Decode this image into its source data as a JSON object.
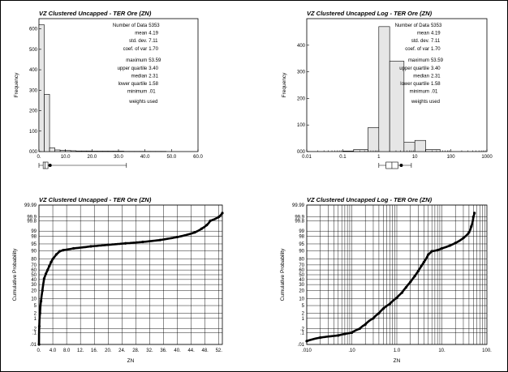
{
  "chart_data": [
    {
      "type": "bar",
      "title": "VZ Clustered Uncapped - TER Ore (ZN)",
      "ylabel": "Frequency",
      "xlim": [
        0,
        60
      ],
      "ylim": [
        0,
        650
      ],
      "xticks": [
        "0.",
        "10.0",
        "20.0",
        "30.0",
        "40.0",
        "50.0",
        "60.0"
      ],
      "yticks": [
        "000",
        "100",
        "200",
        "300",
        "400",
        "500",
        "600"
      ],
      "bin_width": 2,
      "values": [
        620,
        280,
        18,
        8,
        6,
        5,
        4,
        3,
        3,
        3,
        2,
        2,
        2,
        2,
        2,
        2,
        1,
        1,
        1,
        1,
        1,
        1,
        1,
        1
      ],
      "boxplot": {
        "p10": 0.0,
        "q1": 1.58,
        "median": 2.31,
        "q3": 3.4,
        "p90": 33.0,
        "mean": 4.19
      },
      "stats": {
        "labels": [
          "Number of Data",
          "mean",
          "std. dev.",
          "coef. of var",
          "maximum",
          "upper quartile",
          "median",
          "lower quartile",
          "minimum"
        ],
        "values": [
          "5353",
          "4.19",
          "7.11",
          "1.70",
          "53.59",
          "3.40",
          "2.31",
          "1.58",
          ".01"
        ],
        "note": "weights used"
      }
    },
    {
      "type": "bar",
      "title": "VZ Clustered Uncapped Log - TER Ore (ZN)",
      "ylabel": "Frequency",
      "xscale": "log",
      "xlim": [
        0.01,
        1000
      ],
      "ylim": [
        0,
        500
      ],
      "xticks": [
        "0.01",
        "0.1",
        "1",
        "10",
        "100",
        "1000"
      ],
      "yticks": [
        "000",
        "100",
        "200",
        "300",
        "400"
      ],
      "bins": [
        [
          0.1,
          0.2,
          2
        ],
        [
          0.2,
          0.5,
          8
        ],
        [
          0.5,
          1.0,
          90
        ],
        [
          1.0,
          2.0,
          470
        ],
        [
          2.0,
          5.0,
          340
        ],
        [
          5.0,
          10.0,
          35
        ],
        [
          10.0,
          20.0,
          42
        ],
        [
          20.0,
          50.0,
          8
        ]
      ],
      "boxplot": {
        "p10": 1.0,
        "q1": 1.58,
        "median": 2.31,
        "q3": 3.4,
        "p90": 8.0,
        "mean": 4.19
      },
      "stats": {
        "labels": [
          "Number of Data",
          "mean",
          "std. dev.",
          "coef. of var",
          "maximum",
          "upper quartile",
          "median",
          "lower quartile",
          "minimum"
        ],
        "values": [
          "5353",
          "4.19",
          "7.11",
          "1.70",
          "53.59",
          "3.40",
          "2.31",
          "1.58",
          ".01"
        ],
        "note": "weights used"
      }
    },
    {
      "type": "scatter",
      "title": "VZ Clustered Uncapped - TER Ore (ZN)",
      "xlabel": "ZN",
      "ylabel": "Cumulative Probability",
      "xlim": [
        0,
        53
      ],
      "xticks": [
        "0.",
        "4.0",
        "8.0",
        "12.",
        "16.",
        "20.",
        "24.",
        "28.",
        "32.",
        "36.",
        "40.",
        "44.",
        "48.",
        "52."
      ],
      "yticks": [
        "99.99",
        "99.9",
        "99.8",
        "99",
        "98",
        "95",
        "90",
        "80",
        "70",
        "60",
        "50",
        "40",
        "30",
        "20",
        "10",
        "5",
        "2",
        "1",
        ".2",
        ".1",
        ".01"
      ],
      "points": [
        [
          0.01,
          0.01
        ],
        [
          0.1,
          0.3
        ],
        [
          0.3,
          2
        ],
        [
          0.6,
          8
        ],
        [
          1.0,
          20
        ],
        [
          1.5,
          42
        ],
        [
          2.0,
          52
        ],
        [
          2.5,
          60
        ],
        [
          3.0,
          68
        ],
        [
          3.5,
          75
        ],
        [
          4.0,
          80
        ],
        [
          5.0,
          86
        ],
        [
          6.0,
          89.5
        ],
        [
          7.0,
          90.5
        ],
        [
          10.0,
          92
        ],
        [
          15.0,
          93.5
        ],
        [
          20.0,
          94.5
        ],
        [
          25.0,
          95.3
        ],
        [
          30.0,
          96.0
        ],
        [
          35.0,
          96.8
        ],
        [
          40.0,
          97.8
        ],
        [
          45.0,
          98.8
        ],
        [
          47.0,
          99.3
        ],
        [
          48.5,
          99.6
        ],
        [
          49.5,
          99.8
        ],
        [
          52.0,
          99.9
        ],
        [
          53.0,
          99.95
        ]
      ]
    },
    {
      "type": "scatter",
      "title": "VZ Clustered Uncapped Log - TER Ore (ZN)",
      "xlabel": "ZN",
      "ylabel": "Cumulative Probability",
      "xscale": "log",
      "xlim": [
        0.01,
        100
      ],
      "xticks": [
        ".010",
        ".10",
        "1.0",
        "10.",
        "100."
      ],
      "yticks": [
        "99.99",
        "99.9",
        "99.8",
        "99",
        "98",
        "95",
        "90",
        "80",
        "70",
        "60",
        "50",
        "40",
        "30",
        "20",
        "10",
        "5",
        "2",
        "1",
        ".2",
        ".1",
        ".01"
      ],
      "points": [
        [
          0.01,
          0.02
        ],
        [
          0.02,
          0.04
        ],
        [
          0.05,
          0.06
        ],
        [
          0.07,
          0.08
        ],
        [
          0.1,
          0.1
        ],
        [
          0.15,
          0.2
        ],
        [
          0.2,
          0.4
        ],
        [
          0.3,
          1.0
        ],
        [
          0.4,
          2.0
        ],
        [
          0.5,
          3.5
        ],
        [
          0.7,
          6
        ],
        [
          1.0,
          11
        ],
        [
          1.3,
          17
        ],
        [
          1.6,
          25
        ],
        [
          2.0,
          35
        ],
        [
          2.5,
          47
        ],
        [
          3.0,
          58
        ],
        [
          3.5,
          68
        ],
        [
          4.0,
          75
        ],
        [
          5.0,
          86
        ],
        [
          6.0,
          89.5
        ],
        [
          8.0,
          90.5
        ],
        [
          10.0,
          92
        ],
        [
          15.0,
          94
        ],
        [
          20.0,
          95.5
        ],
        [
          30.0,
          97.5
        ],
        [
          40.0,
          98.8
        ],
        [
          45.0,
          99.5
        ],
        [
          50.0,
          99.9
        ],
        [
          53.0,
          99.95
        ]
      ]
    }
  ]
}
